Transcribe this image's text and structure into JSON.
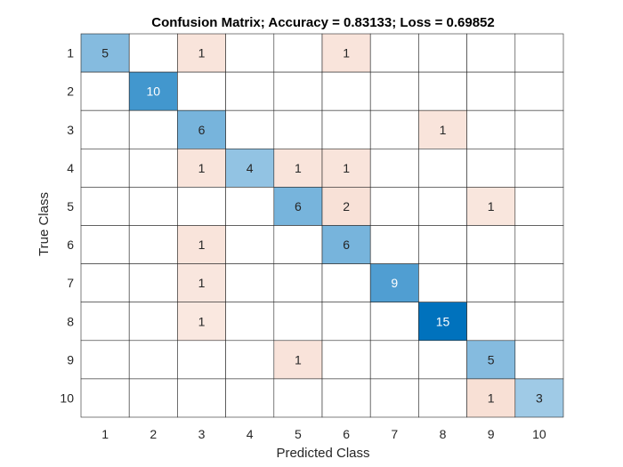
{
  "chart_data": {
    "type": "heatmap",
    "title": "Confusion Matrix; Accuracy = 0.83133; Loss = 0.69852",
    "xlabel": "Predicted Class",
    "ylabel": "True Class",
    "row_labels": [
      "1",
      "2",
      "3",
      "4",
      "5",
      "6",
      "7",
      "8",
      "9",
      "10"
    ],
    "col_labels": [
      "1",
      "2",
      "3",
      "4",
      "5",
      "6",
      "7",
      "8",
      "9",
      "10"
    ],
    "matrix": [
      [
        5,
        0,
        1,
        0,
        0,
        1,
        0,
        0,
        0,
        0
      ],
      [
        0,
        10,
        0,
        0,
        0,
        0,
        0,
        0,
        0,
        0
      ],
      [
        0,
        0,
        6,
        0,
        0,
        0,
        0,
        1,
        0,
        0
      ],
      [
        0,
        0,
        1,
        4,
        1,
        1,
        0,
        0,
        0,
        0
      ],
      [
        0,
        0,
        0,
        0,
        6,
        2,
        0,
        0,
        1,
        0
      ],
      [
        0,
        0,
        1,
        0,
        0,
        6,
        0,
        0,
        0,
        0
      ],
      [
        0,
        0,
        1,
        0,
        0,
        0,
        9,
        0,
        0,
        0
      ],
      [
        0,
        0,
        1,
        0,
        0,
        0,
        0,
        15,
        0,
        0
      ],
      [
        0,
        0,
        0,
        0,
        1,
        0,
        0,
        0,
        5,
        0
      ],
      [
        0,
        0,
        0,
        0,
        0,
        0,
        0,
        0,
        1,
        3
      ]
    ],
    "colors": {
      "diagonal_max": "#0072bd",
      "offdiagonal_max": "#d95319",
      "grid": "#262626"
    }
  }
}
